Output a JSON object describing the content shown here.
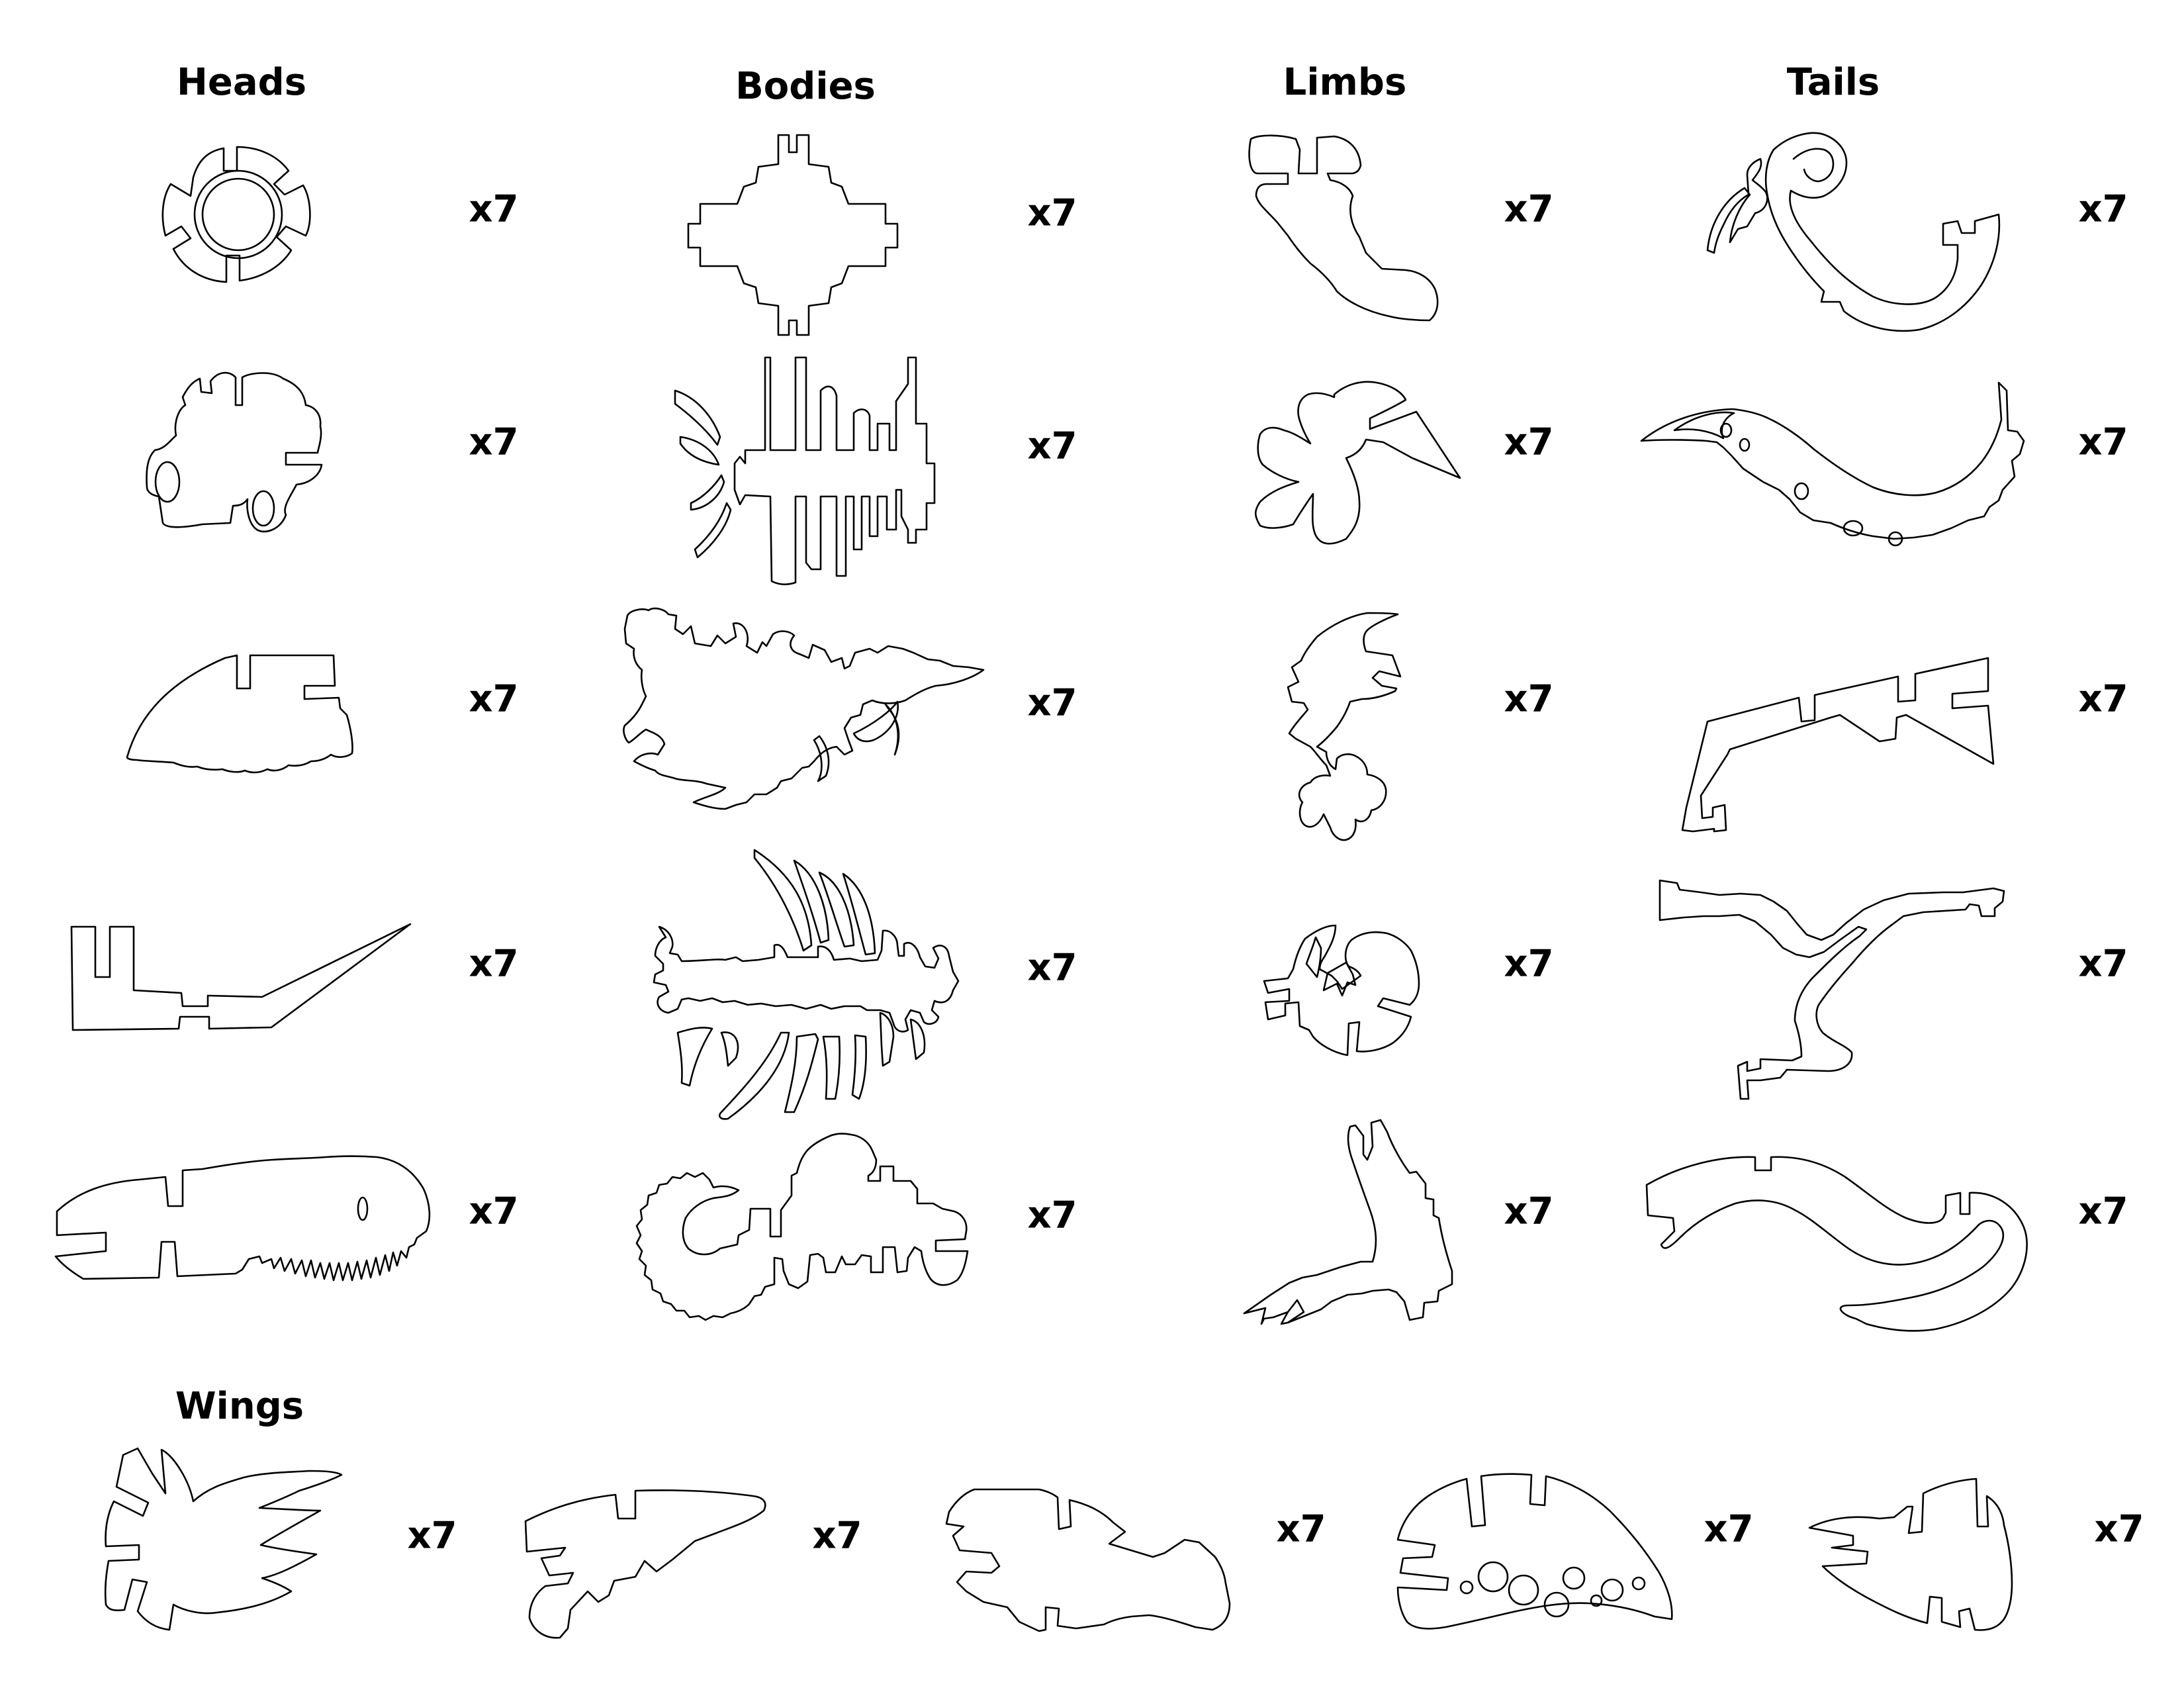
{
  "sections": {
    "heads": "Heads",
    "bodies": "Bodies",
    "limbs": "Limbs",
    "tails": "Tails",
    "wings": "Wings"
  },
  "quantity_label": "x7",
  "parts": {
    "heads": [
      "head-1",
      "head-2",
      "head-3",
      "head-4",
      "head-5"
    ],
    "bodies": [
      "body-1",
      "body-2",
      "body-3",
      "body-4",
      "body-5"
    ],
    "limbs": [
      "limb-1",
      "limb-2",
      "limb-3",
      "limb-4",
      "limb-5"
    ],
    "tails": [
      "tail-1",
      "tail-2",
      "tail-3",
      "tail-4",
      "tail-5"
    ],
    "wings": [
      "wing-1",
      "wing-2",
      "wing-3",
      "wing-4",
      "wing-5"
    ]
  },
  "line_color": "#000000",
  "background_color": "#ffffff"
}
